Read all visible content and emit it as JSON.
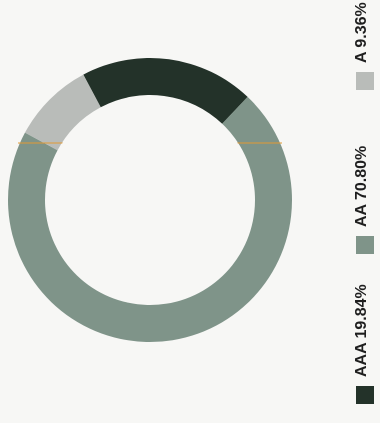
{
  "chart_data": {
    "type": "pie",
    "donut": true,
    "legend_position": "right",
    "orientation": "rotated-90-clockwise",
    "series": [
      {
        "name": "AAA",
        "value": 19.84,
        "label": "AAA 19.84%",
        "color": "#233229"
      },
      {
        "name": "AA",
        "value": 70.8,
        "label": "AA 70.80%",
        "color": "#7f9489"
      },
      {
        "name": "A",
        "value": 9.36,
        "label": "A 9.36%",
        "color": "#b9bcb9"
      }
    ],
    "accent_line_color": "#e39a34"
  }
}
